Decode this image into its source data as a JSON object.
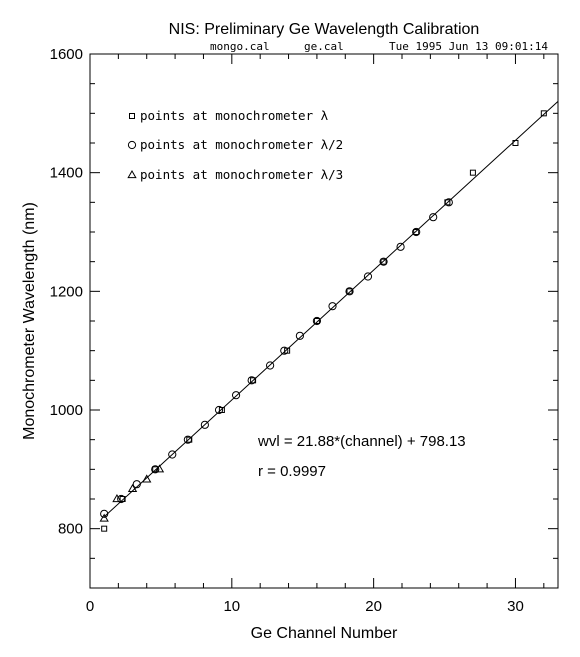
{
  "chart_data": {
    "type": "scatter",
    "title": "NIS: Preliminary Ge Wavelength Calibration",
    "subtitle": {
      "file1": "mongo.cal",
      "file2": "ge.cal",
      "timestamp": "Tue 1995 Jun 13 09:01:14"
    },
    "xlabel": "Ge Channel Number",
    "ylabel": "Monochrometer Wavelength (nm)",
    "xlim": [
      0,
      33
    ],
    "ylim": [
      700,
      1600
    ],
    "x_ticks": [
      "0",
      "10",
      "20",
      "30"
    ],
    "y_ticks": [
      "800",
      "1000",
      "1200",
      "1400",
      "1600"
    ],
    "x_tick_values": [
      0,
      10,
      20,
      30
    ],
    "y_tick_values": [
      800,
      1000,
      1200,
      1400,
      1600
    ],
    "x_minor_step": 2,
    "y_minor_step": 50,
    "legend_position": "top-left",
    "series": [
      {
        "name": "points at monochrometer λ",
        "marker": "square",
        "points": [
          [
            1.0,
            800
          ],
          [
            2.3,
            850
          ],
          [
            4.6,
            900
          ],
          [
            7.0,
            950
          ],
          [
            9.3,
            1000
          ],
          [
            11.5,
            1050
          ],
          [
            13.9,
            1100
          ],
          [
            16.0,
            1150
          ],
          [
            18.3,
            1200
          ],
          [
            20.7,
            1250
          ],
          [
            23.0,
            1300
          ],
          [
            25.2,
            1350
          ],
          [
            27.0,
            1400
          ],
          [
            30.0,
            1450
          ],
          [
            32.0,
            1500
          ]
        ]
      },
      {
        "name": "points at monochrometer λ/2",
        "marker": "circle",
        "points": [
          [
            1.0,
            825
          ],
          [
            2.2,
            850
          ],
          [
            3.3,
            875
          ],
          [
            4.6,
            900
          ],
          [
            5.8,
            925
          ],
          [
            6.9,
            950
          ],
          [
            8.1,
            975
          ],
          [
            9.1,
            1000
          ],
          [
            10.3,
            1025
          ],
          [
            11.4,
            1050
          ],
          [
            12.7,
            1075
          ],
          [
            13.7,
            1100
          ],
          [
            14.8,
            1125
          ],
          [
            16.0,
            1150
          ],
          [
            17.1,
            1175
          ],
          [
            18.3,
            1200
          ],
          [
            19.6,
            1225
          ],
          [
            20.7,
            1250
          ],
          [
            21.9,
            1275
          ],
          [
            23.0,
            1300
          ],
          [
            24.2,
            1325
          ],
          [
            25.3,
            1350
          ]
        ]
      },
      {
        "name": "points at monochrometer λ/3",
        "marker": "triangle",
        "points": [
          [
            1.0,
            817
          ],
          [
            1.9,
            850
          ],
          [
            3.0,
            867
          ],
          [
            4.0,
            883
          ],
          [
            4.9,
            900
          ]
        ]
      }
    ],
    "fit_line": {
      "slope": 21.88,
      "intercept": 798.13,
      "x_range": [
        1.0,
        33.0
      ]
    },
    "annotations": [
      "wvl = 21.88*(channel) + 798.13",
      "r = 0.9997"
    ]
  }
}
